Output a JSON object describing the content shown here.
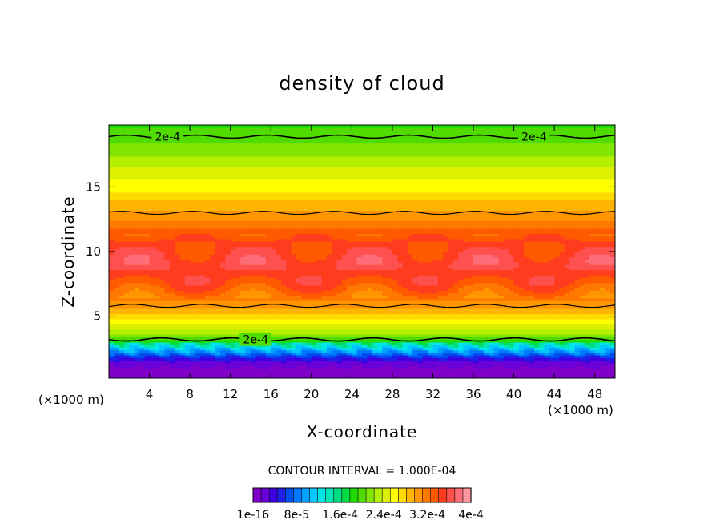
{
  "chart_data": {
    "type": "heatmap",
    "title": "density of cloud",
    "xlabel": "X-coordinate",
    "ylabel": "Z-coordinate",
    "x_unit": "(×1000 m)",
    "y_unit": "(×1000 m)",
    "xlim": [
      0,
      50
    ],
    "ylim": [
      0.2,
      19.8
    ],
    "x_ticks": [
      4,
      8,
      12,
      16,
      20,
      24,
      28,
      32,
      36,
      40,
      44,
      48
    ],
    "y_ticks": [
      5,
      10,
      15
    ],
    "contour_interval_text": "CONTOUR INTERVAL = 1.000E-04",
    "contour_labels": [
      {
        "text": "2e-4",
        "x": 5.8,
        "z": 18.9
      },
      {
        "text": "2e-4",
        "x": 42.0,
        "z": 18.9
      },
      {
        "text": "2e-4",
        "x": 14.5,
        "z": 3.2
      }
    ],
    "vertical_profile": [
      {
        "z": 0.8,
        "value": 1e-05
      },
      {
        "z": 1.5,
        "value": 3e-05
      },
      {
        "z": 2.2,
        "value": 0.0001
      },
      {
        "z": 3.2,
        "value": 0.0002
      },
      {
        "z": 4.5,
        "value": 0.00026
      },
      {
        "z": 5.8,
        "value": 0.0003
      },
      {
        "z": 7.5,
        "value": 0.00034
      },
      {
        "z": 9.0,
        "value": 0.00036
      },
      {
        "z": 11.0,
        "value": 0.00034
      },
      {
        "z": 13.0,
        "value": 0.0003
      },
      {
        "z": 15.0,
        "value": 0.00026
      },
      {
        "z": 17.0,
        "value": 0.00023
      },
      {
        "z": 18.9,
        "value": 0.0002
      },
      {
        "z": 19.8,
        "value": 0.00019
      }
    ],
    "colorbar": {
      "min": 1e-16,
      "max": 0.0004,
      "labels": [
        "1e-16",
        "8e-5",
        "1.6e-4",
        "2.4e-4",
        "3.2e-4",
        "4e-4"
      ],
      "colors": [
        "#7f00c8",
        "#6a00d8",
        "#3c00e0",
        "#1e1ee6",
        "#0050f0",
        "#0078ff",
        "#00a0ff",
        "#00c8ff",
        "#00e6e6",
        "#00e6b4",
        "#00dc82",
        "#00dc46",
        "#1edc00",
        "#50dc00",
        "#82e600",
        "#b4f000",
        "#dcf000",
        "#ffff00",
        "#ffdc00",
        "#ffb400",
        "#ff9600",
        "#ff7800",
        "#ff5a00",
        "#ff3c1e",
        "#ff5050",
        "#ff6e78",
        "#ff96a0"
      ]
    }
  }
}
